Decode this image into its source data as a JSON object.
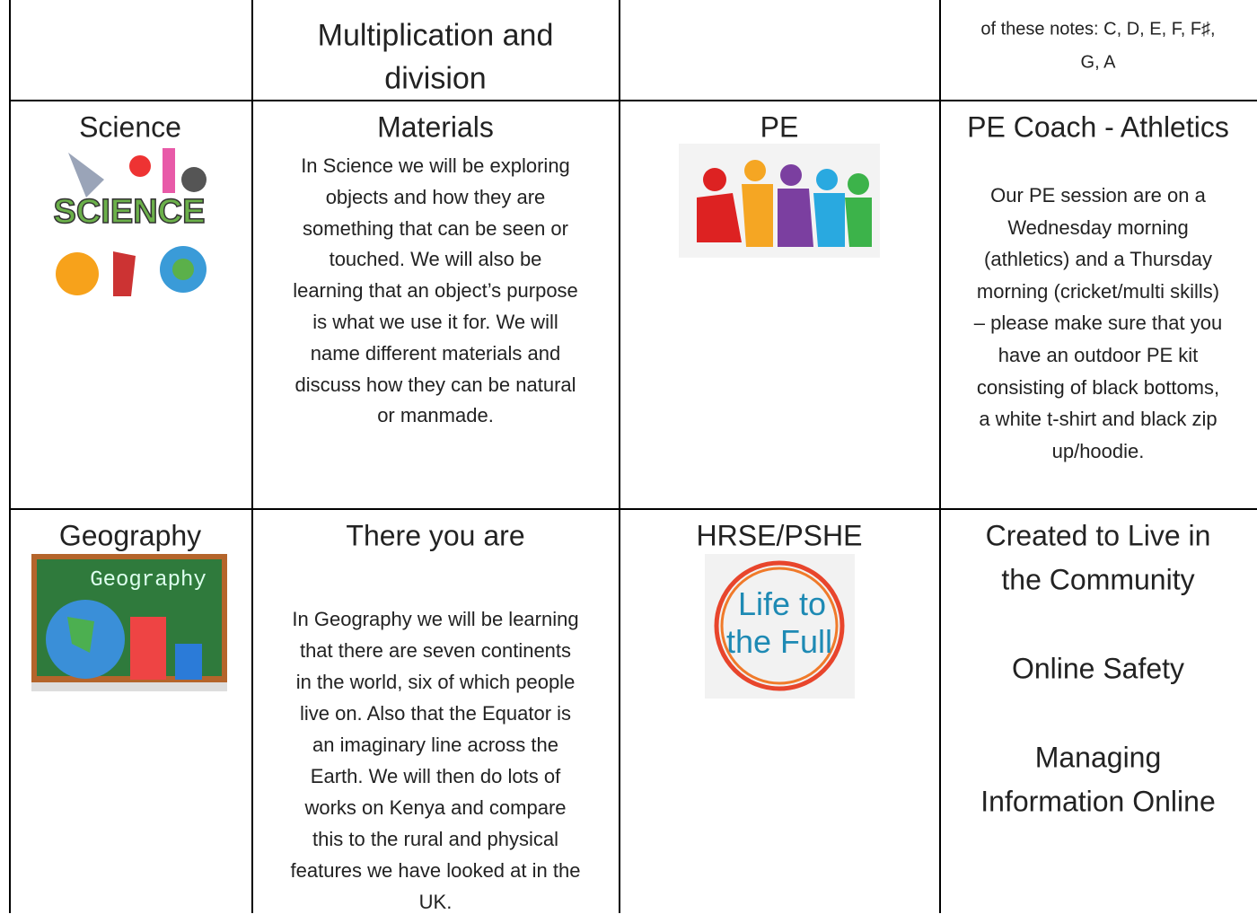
{
  "top_row": {
    "maths_title": [
      "Multiplication and",
      "division"
    ],
    "music_text": [
      "of these notes: C, D, E, F, F♯,",
      "G, A"
    ]
  },
  "rows": [
    {
      "subject": "Science",
      "image_text": "SCIENCE",
      "topic": "Materials",
      "description": [
        "In Science we will be exploring",
        "objects and how they are",
        "something that can be seen or",
        "touched.  We will also be",
        "learning that an object’s purpose",
        "is what we use it for.  We will",
        "name different materials and",
        "discuss how they can be natural",
        "or manmade."
      ],
      "subject_2": "PE",
      "topic_2": [
        "PE Coach - Athletics"
      ],
      "description_2": [
        "Our PE session are on a",
        "Wednesday morning",
        "(athletics) and a Thursday",
        "morning (cricket/multi skills)",
        "– please make sure that you",
        "have an outdoor PE kit",
        "consisting of black bottoms,",
        "a white t-shirt and black zip",
        "up/hoodie."
      ]
    },
    {
      "subject": "Geography",
      "image_text": "Geography",
      "topic": "There you are",
      "description": [
        "In Geography we will be learning",
        "that there are seven continents",
        "in the world, six of which people",
        "live on.  Also that the Equator is",
        "an imaginary line across the",
        "Earth.  We will then do lots of",
        "works on Kenya and compare",
        "this to the rural and physical",
        "features we have looked at in the",
        "UK."
      ],
      "subject_2": "HRSE/PSHE",
      "image_text_2": [
        "Life to",
        "the Full"
      ],
      "topic_2": [
        "Created to Live in",
        "the Community",
        "Online Safety",
        "Managing",
        "Information Online"
      ]
    }
  ]
}
